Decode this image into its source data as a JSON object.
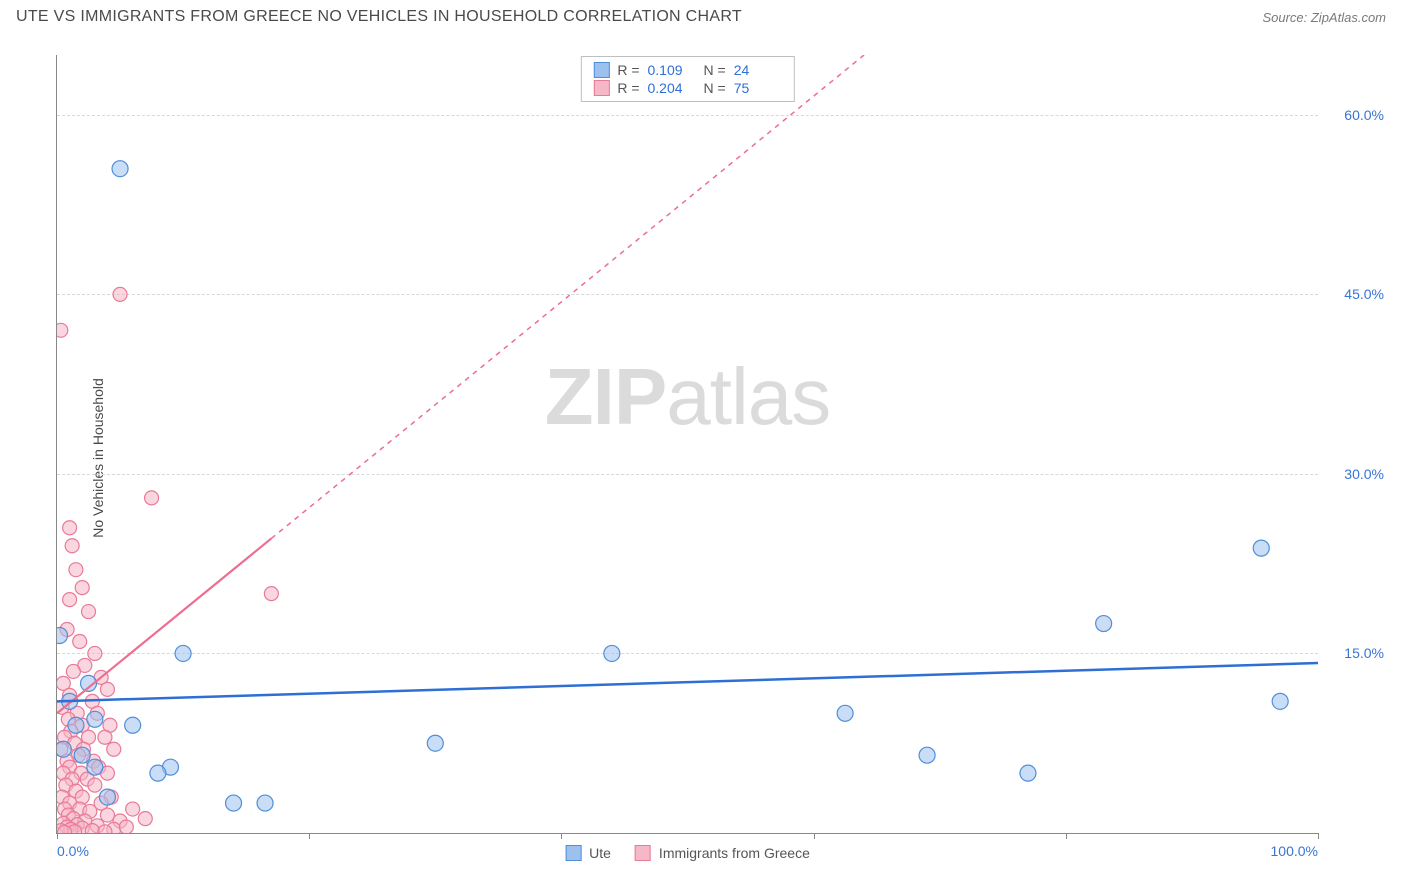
{
  "header": {
    "title": "UTE VS IMMIGRANTS FROM GREECE NO VEHICLES IN HOUSEHOLD CORRELATION CHART",
    "source": "Source: ZipAtlas.com"
  },
  "chart": {
    "type": "scatter",
    "ylabel": "No Vehicles in Household",
    "watermark": {
      "bold": "ZIP",
      "rest": "atlas"
    },
    "background_color": "#ffffff",
    "grid_color": "#d8d8d8",
    "axis_color": "#888888",
    "tick_label_color": "#3874d8",
    "xlim": [
      0,
      100
    ],
    "ylim": [
      0,
      65
    ],
    "x_ticks": [
      0,
      20,
      40,
      60,
      80,
      100
    ],
    "x_tick_labels_shown": {
      "0": "0.0%",
      "100": "100.0%"
    },
    "y_gridlines": [
      15,
      30,
      45,
      60
    ],
    "y_tick_labels": {
      "15": "15.0%",
      "30": "30.0%",
      "45": "45.0%",
      "60": "60.0%"
    },
    "series": {
      "blue": {
        "label": "Ute",
        "fill": "#9cc1ef",
        "stroke": "#4f8fd9",
        "marker_radius": 8,
        "r_value": "0.109",
        "n_value": "24",
        "trend": {
          "color": "#2e6fd6",
          "width": 2.5,
          "dash": "none",
          "x1": 0,
          "y1": 11.0,
          "x2": 100,
          "y2": 14.2
        },
        "points": [
          [
            0.2,
            16.5
          ],
          [
            5.0,
            55.5
          ],
          [
            2.5,
            12.5
          ],
          [
            3.0,
            9.5
          ],
          [
            6.0,
            9.0
          ],
          [
            10.0,
            15.0
          ],
          [
            9.0,
            5.5
          ],
          [
            8.0,
            5.0
          ],
          [
            14.0,
            2.5
          ],
          [
            16.5,
            2.5
          ],
          [
            30.0,
            7.5
          ],
          [
            44.0,
            15.0
          ],
          [
            62.5,
            10.0
          ],
          [
            69.0,
            6.5
          ],
          [
            77.0,
            5.0
          ],
          [
            83.0,
            17.5
          ],
          [
            95.5,
            23.8
          ],
          [
            97.0,
            11.0
          ],
          [
            1.0,
            11.0
          ],
          [
            1.5,
            9.0
          ],
          [
            2.0,
            6.5
          ],
          [
            3.0,
            5.5
          ],
          [
            4.0,
            3.0
          ],
          [
            0.5,
            7.0
          ]
        ]
      },
      "pink": {
        "label": "Immigrants from Greece",
        "fill": "#f6b7c6",
        "stroke": "#e97a98",
        "marker_radius": 7,
        "r_value": "0.204",
        "n_value": "75",
        "trend": {
          "color": "#ed6e8f",
          "width": 1.5,
          "dash": "5,5",
          "x1": 0,
          "y1": 10.0,
          "x2": 64,
          "y2": 65.0
        },
        "trend_solid_until_x": 17,
        "points": [
          [
            0.3,
            42.0
          ],
          [
            5.0,
            45.0
          ],
          [
            1.0,
            25.5
          ],
          [
            1.2,
            24.0
          ],
          [
            7.5,
            28.0
          ],
          [
            1.5,
            22.0
          ],
          [
            2.0,
            20.5
          ],
          [
            1.0,
            19.5
          ],
          [
            2.5,
            18.5
          ],
          [
            0.8,
            17.0
          ],
          [
            1.8,
            16.0
          ],
          [
            17.0,
            20.0
          ],
          [
            3.0,
            15.0
          ],
          [
            2.2,
            14.0
          ],
          [
            1.3,
            13.5
          ],
          [
            3.5,
            13.0
          ],
          [
            0.5,
            12.5
          ],
          [
            4.0,
            12.0
          ],
          [
            1.0,
            11.5
          ],
          [
            2.8,
            11.0
          ],
          [
            0.4,
            10.5
          ],
          [
            1.6,
            10.0
          ],
          [
            3.2,
            10.0
          ],
          [
            0.9,
            9.5
          ],
          [
            2.0,
            9.0
          ],
          [
            4.2,
            9.0
          ],
          [
            1.1,
            8.5
          ],
          [
            0.6,
            8.0
          ],
          [
            2.5,
            8.0
          ],
          [
            3.8,
            8.0
          ],
          [
            1.4,
            7.5
          ],
          [
            0.3,
            7.0
          ],
          [
            2.1,
            7.0
          ],
          [
            4.5,
            7.0
          ],
          [
            1.7,
            6.5
          ],
          [
            0.8,
            6.0
          ],
          [
            2.9,
            6.0
          ],
          [
            1.0,
            5.5
          ],
          [
            3.3,
            5.5
          ],
          [
            0.5,
            5.0
          ],
          [
            1.9,
            5.0
          ],
          [
            4.0,
            5.0
          ],
          [
            1.2,
            4.5
          ],
          [
            2.4,
            4.5
          ],
          [
            0.7,
            4.0
          ],
          [
            3.0,
            4.0
          ],
          [
            1.5,
            3.5
          ],
          [
            0.4,
            3.0
          ],
          [
            2.0,
            3.0
          ],
          [
            4.3,
            3.0
          ],
          [
            1.0,
            2.5
          ],
          [
            3.5,
            2.5
          ],
          [
            0.6,
            2.0
          ],
          [
            1.8,
            2.0
          ],
          [
            6.0,
            2.0
          ],
          [
            2.6,
            1.8
          ],
          [
            0.9,
            1.5
          ],
          [
            4.0,
            1.5
          ],
          [
            1.3,
            1.2
          ],
          [
            2.2,
            1.0
          ],
          [
            5.0,
            1.0
          ],
          [
            0.5,
            0.8
          ],
          [
            1.6,
            0.7
          ],
          [
            3.2,
            0.6
          ],
          [
            0.8,
            0.5
          ],
          [
            2.0,
            0.4
          ],
          [
            4.5,
            0.3
          ],
          [
            1.1,
            0.3
          ],
          [
            0.3,
            0.2
          ],
          [
            2.8,
            0.2
          ],
          [
            1.4,
            0.1
          ],
          [
            3.8,
            0.1
          ],
          [
            0.6,
            0.05
          ],
          [
            5.5,
            0.5
          ],
          [
            7.0,
            1.2
          ]
        ]
      }
    },
    "legend_top": {
      "r_label": "R =",
      "n_label": "N ="
    },
    "legend_bottom_labels": {
      "blue": "Ute",
      "pink": "Immigrants from Greece"
    }
  }
}
